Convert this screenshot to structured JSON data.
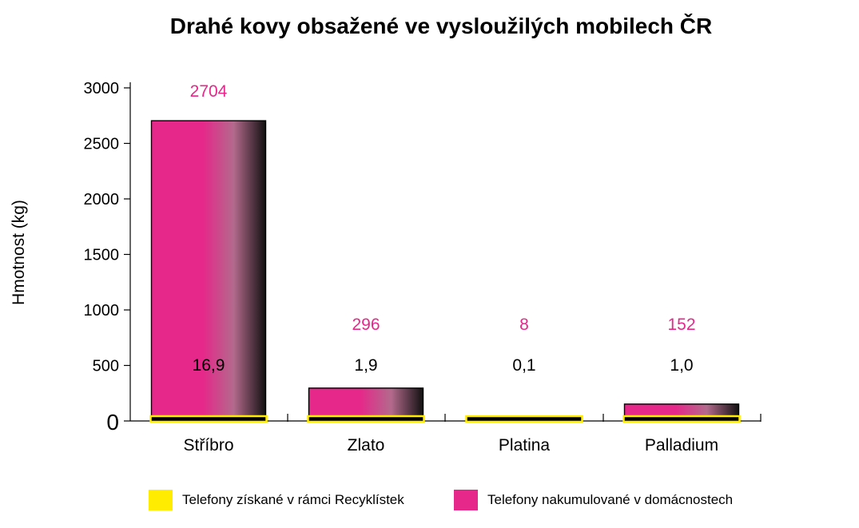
{
  "chart_data": {
    "type": "bar",
    "title": "Drahé kovy obsažené ve vysloužilých mobilech ČR",
    "ylabel": "Hmotnost (kg)",
    "xlabel": "",
    "ylim": [
      0,
      3000
    ],
    "yticks": [
      "0",
      "500",
      "1000",
      "1500",
      "2000",
      "2500",
      "3000"
    ],
    "categories": [
      "Stříbro",
      "Zlato",
      "Platina",
      "Palladium"
    ],
    "series": [
      {
        "name": "Telefony získané v rámci Recyklístek",
        "color": "#ffec00",
        "values": [
          16.9,
          1.9,
          0.1,
          1.0
        ],
        "labels": [
          "16,9",
          "1,9",
          "0,1",
          "1,0"
        ]
      },
      {
        "name": "Telefony nakumulované v domácnostech",
        "color": "#e5288a",
        "values": [
          2704,
          296,
          8,
          152
        ],
        "labels": [
          "2704",
          "296",
          "8",
          "152"
        ]
      }
    ],
    "legend_position": "bottom",
    "grid": false
  }
}
